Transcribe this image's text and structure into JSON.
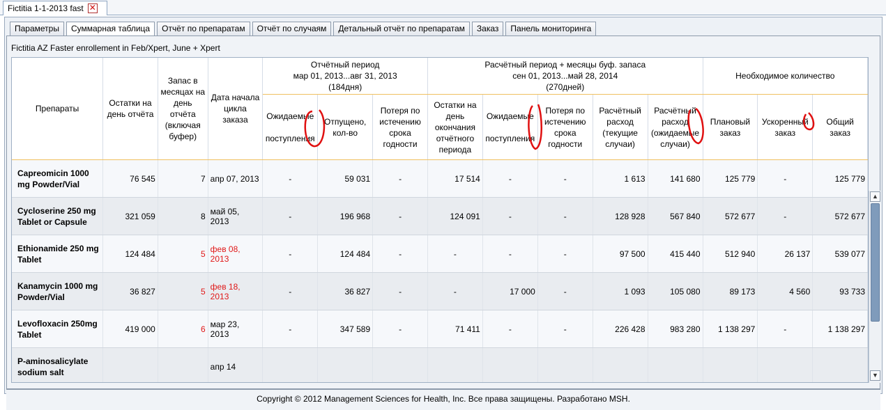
{
  "doc_tab": {
    "title": "Fictitia 1-1-2013 fast",
    "close_glyph": "✕"
  },
  "subtabs": [
    "Параметры",
    "Суммарная таблица",
    "Отчёт по препаратам",
    "Отчёт по случаям",
    "Детальный отчёт по препаратам",
    "Заказ",
    "Панель мониторинга"
  ],
  "active_subtab": "Суммарная таблица",
  "caption": "Fictitia AZ Faster enrollement in Feb/Xpert, June + Xpert",
  "header": {
    "drugs": "Препараты",
    "stock": "Остатки на день отчёта",
    "months": "Запас в месяцах на день отчёта (включая буфер)",
    "start": "Дата начала цикла заказа",
    "report_period": "Отчётный период",
    "report_range": "мар 01, 2013...авг 31, 2013",
    "report_days": "(184дня)",
    "calc_period": "Расчётный период + месяцы буф. запаса",
    "calc_range": "сен 01, 2013...май 28, 2014",
    "calc_days": "(270дней)",
    "need": "Необходимое количество",
    "expected1": "Ожидаемые",
    "expected2": "поступления",
    "dispensed": "Отпущено, кол-во",
    "loss": "Потеря по истечению срока годности",
    "stock_end": "Остатки на день окончания отчётного периода",
    "expected_b1": "Ожидаемые",
    "expected_b2": "поступления",
    "loss_b": "Потеря по истечению срока годности",
    "use_cur": "Расчётный расход (текущие случаи)",
    "use_exp": "Расчётный расход (ожидаемые случаи)",
    "planned": "Плановый заказ",
    "accel": "Ускоренный заказ",
    "total": "Общий заказ"
  },
  "rows": [
    {
      "name": "Capreomicin 1000 mg Powder/Vial",
      "stock": "76 545",
      "months": "7",
      "months_red": false,
      "start": "апр 07, 2013",
      "start_red": false,
      "expected": "-",
      "dispensed": "59 031",
      "loss": "-",
      "stock_end": "17 514",
      "expected_b": "-",
      "loss_b": "-",
      "use_cur": "1 613",
      "use_exp": "141 680",
      "planned": "125 779",
      "accel": "-",
      "total": "125 779"
    },
    {
      "name": "Cycloserine 250 mg Tablet or Capsule",
      "stock": "321 059",
      "months": "8",
      "months_red": false,
      "start": "май 05, 2013",
      "start_red": false,
      "expected": "-",
      "dispensed": "196 968",
      "loss": "-",
      "stock_end": "124 091",
      "expected_b": "-",
      "loss_b": "-",
      "use_cur": "128 928",
      "use_exp": "567 840",
      "planned": "572 677",
      "accel": "-",
      "total": "572 677"
    },
    {
      "name": "Ethionamide 250 mg Tablet",
      "stock": "124 484",
      "months": "5",
      "months_red": true,
      "start": "фев 08, 2013",
      "start_red": true,
      "expected": "-",
      "dispensed": "124 484",
      "loss": "-",
      "stock_end": "-",
      "expected_b": "-",
      "loss_b": "-",
      "use_cur": "97 500",
      "use_exp": "415 440",
      "planned": "512 940",
      "accel": "26 137",
      "total": "539 077"
    },
    {
      "name": "Kanamycin 1000 mg Powder/Vial",
      "stock": "36 827",
      "months": "5",
      "months_red": true,
      "start": "фев 18, 2013",
      "start_red": true,
      "expected": "-",
      "dispensed": "36 827",
      "loss": "-",
      "stock_end": "-",
      "expected_b": "17 000",
      "loss_b": "-",
      "use_cur": "1 093",
      "use_exp": "105 080",
      "planned": "89 173",
      "accel": "4 560",
      "total": "93 733"
    },
    {
      "name": "Levofloxacin 250mg Tablet",
      "stock": "419 000",
      "months": "6",
      "months_red": true,
      "start": "мар 23, 2013",
      "start_red": false,
      "expected": "-",
      "dispensed": "347 589",
      "loss": "-",
      "stock_end": "71 411",
      "expected_b": "-",
      "loss_b": "-",
      "use_cur": "226 428",
      "use_exp": "983 280",
      "planned": "1 138 297",
      "accel": "-",
      "total": "1 138 297"
    },
    {
      "name": "P-aminosalicylate sodium salt",
      "stock": "",
      "months": "",
      "months_red": false,
      "start": "апр 14",
      "start_red": false,
      "expected": "",
      "dispensed": "",
      "loss": "",
      "stock_end": "",
      "expected_b": "",
      "loss_b": "",
      "use_cur": "",
      "use_exp": "",
      "planned": "",
      "accel": "",
      "total": ""
    }
  ],
  "scrollbar": {
    "up_glyph": "▲",
    "down_glyph": "▼"
  },
  "footer": "Copyright © 2012 Management Sciences for Health, Inc. Все права защищены. Разработано MSH.",
  "colors": {
    "alert_red": "#e01818",
    "annotation_red": "#e01010",
    "scroll_thumb": "#7f9bbb"
  }
}
